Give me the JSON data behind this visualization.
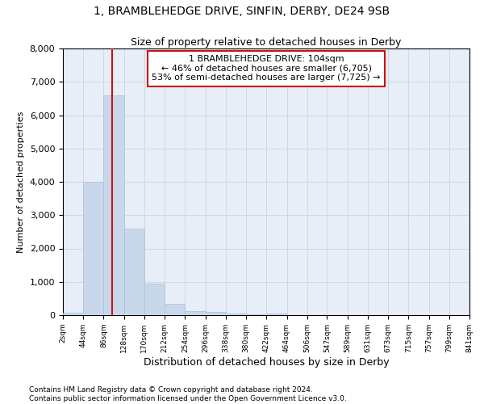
{
  "title1": "1, BRAMBLEHEDGE DRIVE, SINFIN, DERBY, DE24 9SB",
  "title2": "Size of property relative to detached houses in Derby",
  "xlabel": "Distribution of detached houses by size in Derby",
  "ylabel": "Number of detached properties",
  "bar_color": "#c8d8ea",
  "bar_edge_color": "#a8c0d8",
  "grid_color": "#c8d4e4",
  "background_color": "#e8eef8",
  "annotation_box_edge": "#cc1111",
  "vline_color": "#cc1111",
  "bin_edges": [
    2,
    44,
    86,
    128,
    170,
    212,
    254,
    296,
    338,
    380,
    422,
    464,
    506,
    547,
    589,
    631,
    673,
    715,
    757,
    799,
    841
  ],
  "bar_heights": [
    75,
    4000,
    6600,
    2600,
    950,
    330,
    130,
    100,
    55,
    25,
    50,
    8,
    4,
    2,
    1,
    1,
    1,
    1,
    1,
    1
  ],
  "property_size": 104,
  "ann_line1": "1 BRAMBLEHEDGE DRIVE: 104sqm",
  "ann_line2": "← 46% of detached houses are smaller (6,705)",
  "ann_line3": "53% of semi-detached houses are larger (7,725) →",
  "footer1": "Contains HM Land Registry data © Crown copyright and database right 2024.",
  "footer2": "Contains public sector information licensed under the Open Government Licence v3.0.",
  "ylim": [
    0,
    8000
  ],
  "yticks": [
    0,
    1000,
    2000,
    3000,
    4000,
    5000,
    6000,
    7000,
    8000
  ],
  "title1_fontsize": 10,
  "title2_fontsize": 9,
  "xlabel_fontsize": 9,
  "ylabel_fontsize": 8,
  "xtick_fontsize": 6.5,
  "ytick_fontsize": 8,
  "ann_fontsize": 8,
  "footer_fontsize": 6.5
}
